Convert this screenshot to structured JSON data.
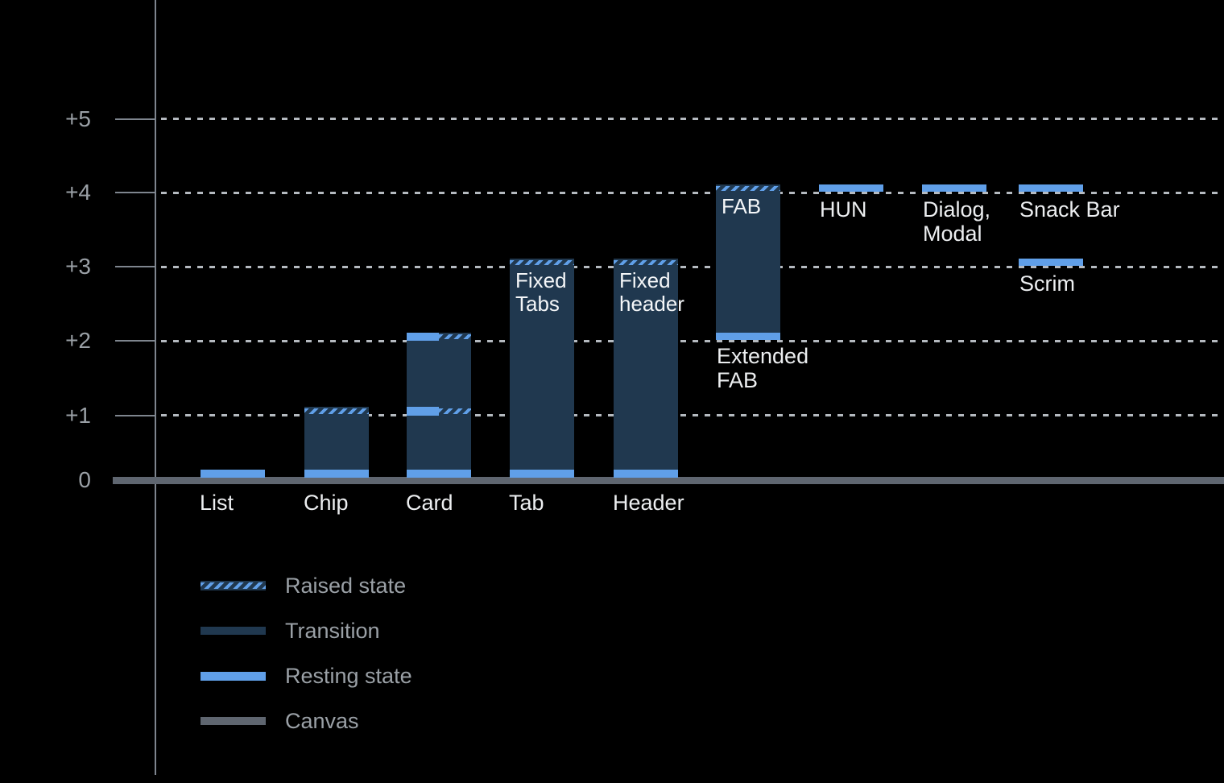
{
  "chart_data": {
    "type": "bar",
    "title": "",
    "xlabel": "",
    "ylabel": "",
    "ylim": [
      0,
      5
    ],
    "grid": "dotted-horizontal",
    "legend_position": "bottom-left",
    "colors": {
      "background": "#000000",
      "resting_blue": "#609fe8",
      "transition_navy": "#20384f",
      "canvas_gray": "#5f6670",
      "axis_gray": "#7e858e",
      "gridline_gray": "#b5bac0",
      "tick_text_gray": "#9aa0a6",
      "label_white": "#eceef0"
    },
    "axis": {
      "ticks": [
        {
          "label": "+5",
          "value": 5
        },
        {
          "label": "+4",
          "value": 4
        },
        {
          "label": "+3",
          "value": 3
        },
        {
          "label": "+2",
          "value": 2
        },
        {
          "label": "+1",
          "value": 1
        },
        {
          "label": "0",
          "value": 0
        }
      ]
    },
    "components": [
      {
        "name": "list",
        "axis_label": "List",
        "col": 0,
        "resting": 0
      },
      {
        "name": "chip",
        "axis_label": "Chip",
        "col": 1,
        "bar": [
          0,
          1
        ],
        "raised": [
          1
        ],
        "resting": 0
      },
      {
        "name": "card",
        "axis_label": "Card",
        "col": 2,
        "bar": [
          0,
          2
        ],
        "split": [
          2,
          1
        ],
        "resting": 0
      },
      {
        "name": "tab",
        "axis_label": "Tab",
        "col": 3,
        "bar": [
          0,
          3
        ],
        "raised": [
          3
        ],
        "resting": 0,
        "inner_label": "Fixed\nTabs"
      },
      {
        "name": "header",
        "axis_label": "Header",
        "col": 4,
        "bar": [
          0,
          3
        ],
        "raised": [
          3
        ],
        "resting": 0,
        "inner_label": "Fixed\nheader"
      },
      {
        "name": "extended-fab",
        "col": 5,
        "bar": [
          2,
          4
        ],
        "raised": [
          4
        ],
        "resting": 2,
        "inner_label": "FAB",
        "below_label": "Extended\nFAB"
      },
      {
        "name": "hun",
        "col": 6,
        "float_resting": 4,
        "float_label": "HUN"
      },
      {
        "name": "dialog-modal",
        "col": 7,
        "float_resting": 4,
        "float_label": "Dialog,\nModal"
      },
      {
        "name": "snack-bar",
        "col": 8,
        "float_resting": 4,
        "float_label": "Snack Bar"
      },
      {
        "name": "scrim",
        "col": 8,
        "float_resting": 3,
        "float_label": "Scrim"
      }
    ],
    "legend": {
      "items": [
        {
          "swatch": "raised",
          "label": "Raised state"
        },
        {
          "swatch": "transition",
          "label": "Transition"
        },
        {
          "swatch": "resting",
          "label": "Resting state"
        },
        {
          "swatch": "canvas",
          "label": "Canvas"
        }
      ]
    }
  }
}
